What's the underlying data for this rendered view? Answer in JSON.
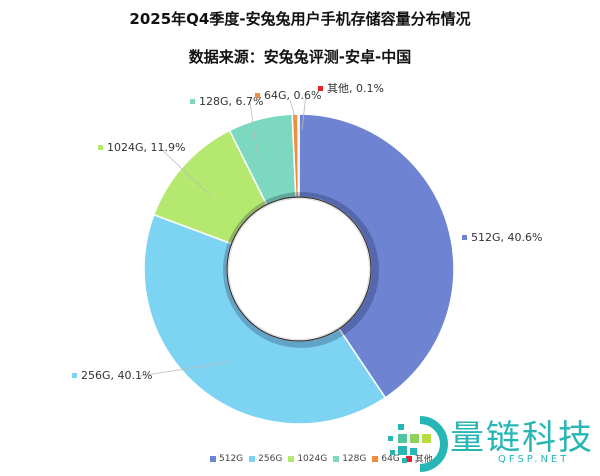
{
  "header": {
    "title": "2025年Q4季度-安兔兔用户手机存储容量分布情况",
    "subtitle": "数据来源：安兔兔评测-安卓-中国"
  },
  "chart_data": {
    "type": "pie",
    "variant": "donut",
    "title": "2025年Q4季度-安兔兔用户手机存储容量分布情况",
    "subtitle": "数据来源：安兔兔评测-安卓-中国",
    "categories": [
      "512G",
      "256G",
      "1024G",
      "128G",
      "64G",
      "其他"
    ],
    "values": [
      40.6,
      40.1,
      11.9,
      6.7,
      0.6,
      0.1
    ],
    "unit": "%",
    "colors": [
      "#6e84d2",
      "#7dd3f2",
      "#b5e86e",
      "#7cd8bf",
      "#f28b3c",
      "#e8202a"
    ],
    "data_labels": [
      "512G, 40.6%",
      "256G, 40.1%",
      "1024G, 11.9%",
      "128G, 6.7%",
      "64G, 0.6%",
      "其他, 0.1%"
    ],
    "legend_position": "bottom",
    "start_angle": "12 o'clock, clockwise"
  },
  "legend": {
    "items": [
      {
        "label": "512G",
        "color": "#6e84d2"
      },
      {
        "label": "256G",
        "color": "#7dd3f2"
      },
      {
        "label": "1024G",
        "color": "#b5e86e"
      },
      {
        "label": "128G",
        "color": "#7cd8bf"
      },
      {
        "label": "64G",
        "color": "#f28b3c"
      },
      {
        "label": "其他",
        "color": "#e8202a"
      }
    ]
  },
  "watermark": {
    "brand": "量链科技",
    "domain": "QFSP.NET",
    "color": "#27b6b6"
  }
}
